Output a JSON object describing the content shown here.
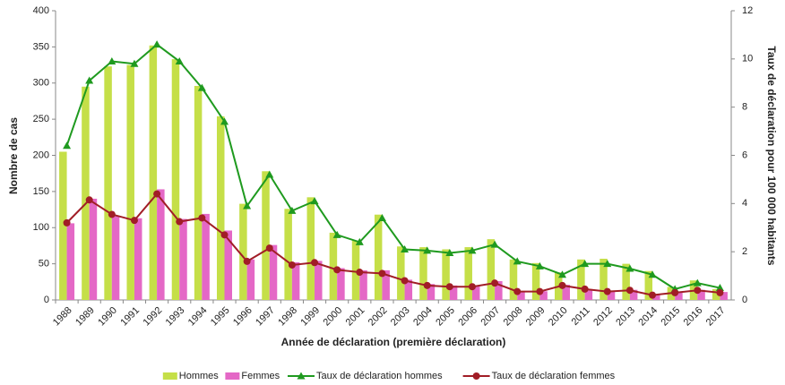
{
  "chart_data": {
    "type": "combo",
    "x_label": "Année de déclaration (première déclaration)",
    "y_label": "Nombre de cas",
    "y2_label": "Taux de déclaration pour 100 000 habitants",
    "categories": [
      "1988",
      "1989",
      "1990",
      "1991",
      "1992",
      "1993",
      "1994",
      "1995",
      "1996",
      "1997",
      "1998",
      "1999",
      "2000",
      "2001",
      "2002",
      "2003",
      "2004",
      "2005",
      "2006",
      "2007",
      "2008",
      "2009",
      "2010",
      "2011",
      "2012",
      "2013",
      "2014",
      "2015",
      "2016",
      "2017"
    ],
    "series": [
      {
        "name": "Hommes",
        "type": "bar",
        "color": "#c5df48",
        "values": [
          205,
          295,
          323,
          325,
          352,
          333,
          296,
          254,
          133,
          178,
          126,
          142,
          93,
          82,
          118,
          74,
          73,
          70,
          73,
          84,
          56,
          51,
          38,
          56,
          57,
          50,
          40,
          18,
          27,
          15
        ]
      },
      {
        "name": "Femmes",
        "type": "bar",
        "color": "#e468c6",
        "values": [
          106,
          140,
          117,
          113,
          153,
          112,
          119,
          96,
          56,
          76,
          52,
          54,
          44,
          41,
          41,
          28,
          22,
          20,
          20,
          26,
          12,
          12,
          21,
          15,
          13,
          14,
          7,
          10,
          14,
          11
        ]
      },
      {
        "name": "Taux de déclaration hommes",
        "type": "line",
        "marker": "triangle",
        "axis": "y2",
        "color": "#1f9a1f",
        "values": [
          6.4,
          9.1,
          9.9,
          9.8,
          10.6,
          9.9,
          8.8,
          7.4,
          3.9,
          5.2,
          3.7,
          4.1,
          2.7,
          2.4,
          3.4,
          2.1,
          2.05,
          1.95,
          2.05,
          2.3,
          1.6,
          1.4,
          1.05,
          1.5,
          1.5,
          1.3,
          1.05,
          0.45,
          0.7,
          0.5
        ]
      },
      {
        "name": "Taux de déclaration femmes",
        "type": "line",
        "marker": "circle",
        "axis": "y2",
        "color": "#a11d26",
        "values": [
          3.2,
          4.15,
          3.55,
          3.3,
          4.4,
          3.25,
          3.4,
          2.7,
          1.6,
          2.15,
          1.45,
          1.55,
          1.25,
          1.15,
          1.1,
          0.8,
          0.6,
          0.55,
          0.55,
          0.7,
          0.35,
          0.35,
          0.6,
          0.45,
          0.35,
          0.4,
          0.2,
          0.3,
          0.4,
          0.3
        ]
      }
    ],
    "ylim": [
      0,
      400
    ],
    "yticks": [
      0,
      50,
      100,
      150,
      200,
      250,
      300,
      350,
      400
    ],
    "y2lim": [
      0,
      12
    ],
    "y2ticks": [
      0,
      2,
      4,
      6,
      8,
      10,
      12
    ],
    "grid": false,
    "legend": "bottom"
  }
}
